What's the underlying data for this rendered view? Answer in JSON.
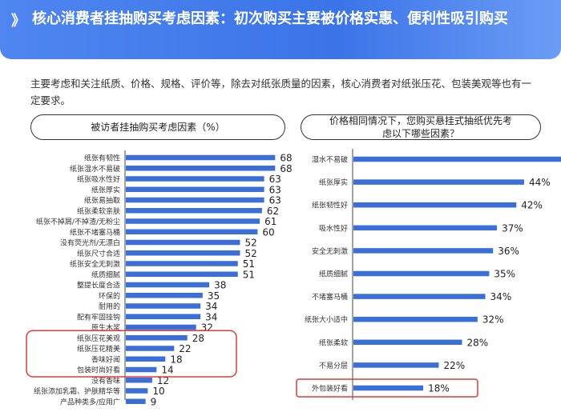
{
  "header": {
    "chevron": "》",
    "title": "核心消费者挂抽购买考虑因素：初次购买主要被价格实惠、便利性吸引购买"
  },
  "intro": "主要考虑和关注纸质、价格、规格、评价等，除去对纸张质量的因素，核心消费者对纸张压花、包装美观等也有一定要求。",
  "colors": {
    "bar": "#3a6fd8",
    "highlight": "#e03a3a",
    "header": "#3b74e8"
  },
  "chart_data": [
    {
      "type": "bar",
      "orientation": "horizontal",
      "title": "被访者挂抽购买考虑因素（%）",
      "categories": [
        "纸张有韧性",
        "纸张湿水不易破",
        "纸张吸水性好",
        "纸张厚实",
        "纸张易抽取",
        "纸张柔软亲肤",
        "纸张不掉屑/不掉渣/无粉尘",
        "纸张不堵塞马桶",
        "没有荧光剂/无漂白",
        "纸张尺寸合适",
        "纸张安全无刺激",
        "纸质细腻",
        "整提长度合适",
        "环保的",
        "耐用的",
        "配有牢固挂钩",
        "原生木浆",
        "纸张压花美观",
        "纸张压花精美",
        "香味好闻",
        "包装时尚好看",
        "没有香味",
        "纸张添加乳霜、护肤精华等",
        "产品种类多/应用广"
      ],
      "values": [
        68,
        68,
        63,
        63,
        63,
        62,
        61,
        60,
        52,
        52,
        51,
        51,
        38,
        35,
        34,
        34,
        32,
        28,
        22,
        18,
        14,
        12,
        10,
        9
      ],
      "highlighted": [
        "纸张压花美观",
        "纸张压花精美",
        "香味好闻",
        "包装时尚好看"
      ]
    },
    {
      "type": "bar",
      "orientation": "horizontal",
      "title": "价格相同情况下，您购买悬挂式抽纸优先考虑以下哪些因素？",
      "categories": [
        "湿水不易破",
        "纸张厚实",
        "纸张韧性好",
        "吸水性好",
        "安全无刺激",
        "纸质细腻",
        "不堵塞马桶",
        "纸张大小适中",
        "纸张柔软",
        "不易分层",
        "外包装好看"
      ],
      "values": [
        54,
        44,
        42,
        37,
        36,
        35,
        34,
        32,
        28,
        22,
        18
      ],
      "value_suffix": "%",
      "highlighted": [
        "外包装好看"
      ]
    }
  ]
}
